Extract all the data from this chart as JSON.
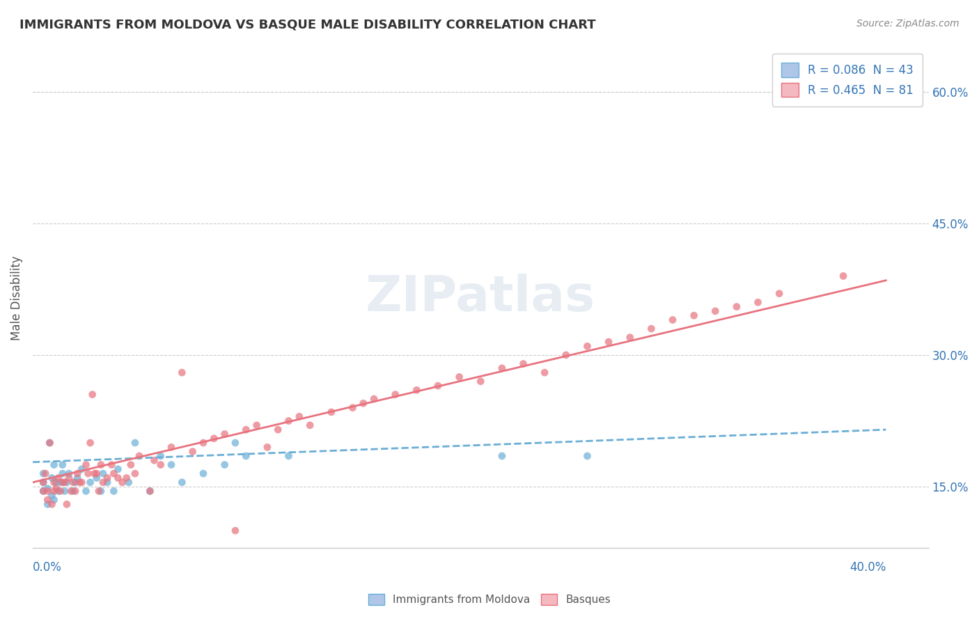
{
  "title": "IMMIGRANTS FROM MOLDOVA VS BASQUE MALE DISABILITY CORRELATION CHART",
  "source": "Source: ZipAtlas.com",
  "ylabel": "Male Disability",
  "right_yticks": [
    "60.0%",
    "45.0%",
    "30.0%",
    "15.0%"
  ],
  "right_ytick_vals": [
    0.6,
    0.45,
    0.3,
    0.15
  ],
  "legend_entries": [
    {
      "label": "R = 0.086  N = 43",
      "color": "#aec6e8",
      "border": "#6aaed6"
    },
    {
      "label": "R = 0.465  N = 81",
      "color": "#f4b8c1",
      "border": "#e8727e"
    }
  ],
  "watermark": "ZIPatlas",
  "series1_color": "#6aaed6",
  "series2_color": "#e8727e",
  "trendline1_color": "#6aaed6",
  "trendline2_color": "#e8727e",
  "xlim": [
    0.0,
    0.42
  ],
  "ylim": [
    0.08,
    0.65
  ],
  "scatter1_x": [
    0.005,
    0.005,
    0.005,
    0.007,
    0.007,
    0.008,
    0.009,
    0.009,
    0.01,
    0.01,
    0.011,
    0.012,
    0.013,
    0.014,
    0.014,
    0.015,
    0.016,
    0.017,
    0.019,
    0.02,
    0.021,
    0.023,
    0.025,
    0.027,
    0.03,
    0.032,
    0.033,
    0.035,
    0.038,
    0.04,
    0.045,
    0.048,
    0.055,
    0.06,
    0.065,
    0.07,
    0.08,
    0.09,
    0.095,
    0.1,
    0.12,
    0.22,
    0.26
  ],
  "scatter1_y": [
    0.145,
    0.155,
    0.165,
    0.13,
    0.148,
    0.2,
    0.14,
    0.16,
    0.135,
    0.175,
    0.155,
    0.145,
    0.155,
    0.165,
    0.175,
    0.145,
    0.155,
    0.165,
    0.145,
    0.155,
    0.16,
    0.17,
    0.145,
    0.155,
    0.16,
    0.145,
    0.165,
    0.155,
    0.145,
    0.17,
    0.155,
    0.2,
    0.145,
    0.185,
    0.175,
    0.155,
    0.165,
    0.175,
    0.2,
    0.185,
    0.185,
    0.185,
    0.185
  ],
  "scatter2_x": [
    0.005,
    0.005,
    0.006,
    0.007,
    0.007,
    0.008,
    0.009,
    0.01,
    0.01,
    0.011,
    0.012,
    0.013,
    0.014,
    0.015,
    0.016,
    0.017,
    0.018,
    0.019,
    0.02,
    0.021,
    0.022,
    0.023,
    0.025,
    0.026,
    0.027,
    0.028,
    0.029,
    0.03,
    0.031,
    0.032,
    0.033,
    0.035,
    0.037,
    0.038,
    0.04,
    0.042,
    0.044,
    0.046,
    0.048,
    0.05,
    0.055,
    0.057,
    0.06,
    0.065,
    0.07,
    0.075,
    0.08,
    0.085,
    0.09,
    0.095,
    0.1,
    0.105,
    0.11,
    0.115,
    0.12,
    0.125,
    0.13,
    0.14,
    0.15,
    0.155,
    0.16,
    0.17,
    0.18,
    0.19,
    0.2,
    0.21,
    0.22,
    0.23,
    0.24,
    0.25,
    0.26,
    0.27,
    0.28,
    0.29,
    0.3,
    0.31,
    0.32,
    0.33,
    0.34,
    0.35,
    0.38
  ],
  "scatter2_y": [
    0.145,
    0.155,
    0.165,
    0.135,
    0.145,
    0.2,
    0.13,
    0.145,
    0.155,
    0.148,
    0.16,
    0.145,
    0.155,
    0.155,
    0.13,
    0.16,
    0.145,
    0.155,
    0.145,
    0.165,
    0.155,
    0.155,
    0.175,
    0.165,
    0.2,
    0.255,
    0.165,
    0.165,
    0.145,
    0.175,
    0.155,
    0.16,
    0.175,
    0.165,
    0.16,
    0.155,
    0.16,
    0.175,
    0.165,
    0.185,
    0.145,
    0.18,
    0.175,
    0.195,
    0.28,
    0.19,
    0.2,
    0.205,
    0.21,
    0.1,
    0.215,
    0.22,
    0.195,
    0.215,
    0.225,
    0.23,
    0.22,
    0.235,
    0.24,
    0.245,
    0.25,
    0.255,
    0.26,
    0.265,
    0.275,
    0.27,
    0.285,
    0.29,
    0.28,
    0.3,
    0.31,
    0.315,
    0.32,
    0.33,
    0.34,
    0.345,
    0.35,
    0.355,
    0.36,
    0.37,
    0.39
  ],
  "trendline1_x": [
    0.0,
    0.4
  ],
  "trendline1_y": [
    0.178,
    0.215
  ],
  "trendline2_x": [
    0.0,
    0.4
  ],
  "trendline2_y": [
    0.155,
    0.385
  ],
  "background_color": "#ffffff",
  "grid_color": "#cccccc"
}
